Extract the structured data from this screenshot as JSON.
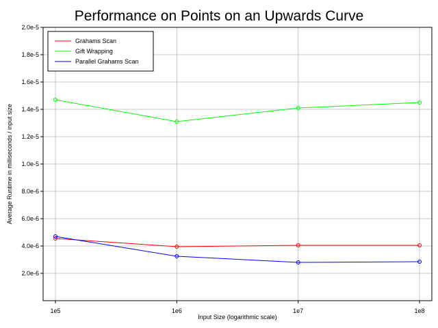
{
  "chart_data": {
    "type": "line",
    "title": "Performance on Points on an Upwards Curve",
    "xlabel": "Input Size (logarithmic scale)",
    "ylabel": "Average Runtime in milliseconds / input size",
    "x_scale": "log",
    "x": [
      100000,
      1000000,
      10000000,
      100000000
    ],
    "x_tick_labels": [
      "1e5",
      "1e6",
      "1e7",
      "1e8"
    ],
    "ylim": [
      0,
      2e-05
    ],
    "y_ticks": [
      2e-06,
      4e-06,
      6e-06,
      8e-06,
      1e-05,
      1.2e-05,
      1.4e-05,
      1.6e-05,
      1.8e-05,
      2e-05
    ],
    "y_tick_labels": [
      "2.0e-6",
      "4.0e-6",
      "6.0e-6",
      "8.0e-6",
      "1.0e-5",
      "1.2e-5",
      "1.4e-5",
      "1.6e-5",
      "1.8e-5",
      "2.0e-5"
    ],
    "grid": true,
    "legend_position": "top-left",
    "series": [
      {
        "name": "Grahams Scan",
        "color": "#ff0000",
        "values": [
          4.55e-06,
          3.95e-06,
          4.05e-06,
          4.05e-06
        ]
      },
      {
        "name": "Gift Wrapping",
        "color": "#00ff00",
        "values": [
          1.47e-05,
          1.31e-05,
          1.41e-05,
          1.45e-05
        ]
      },
      {
        "name": "Parallel Grahams Scan",
        "color": "#0000ff",
        "values": [
          4.7e-06,
          3.25e-06,
          2.8e-06,
          2.85e-06
        ]
      }
    ]
  }
}
